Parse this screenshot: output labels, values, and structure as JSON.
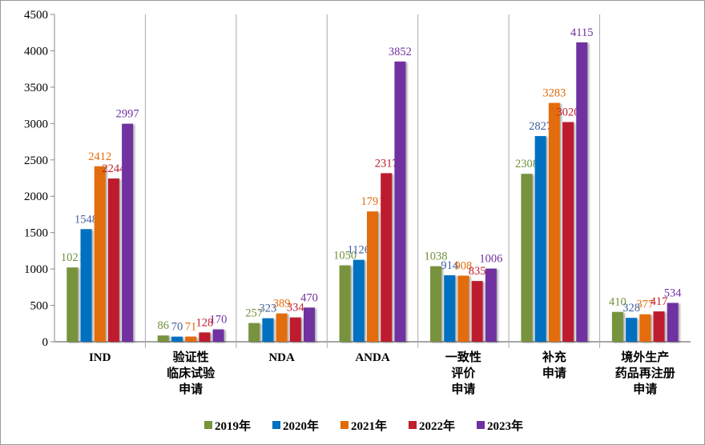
{
  "chart_data": {
    "type": "bar",
    "categories": [
      [
        "IND"
      ],
      [
        "验证性",
        "临床试验",
        "申请"
      ],
      [
        "NDA"
      ],
      [
        "ANDA"
      ],
      [
        "一致性",
        "评价",
        "申请"
      ],
      [
        "补充",
        "申请"
      ],
      [
        "境外生产",
        "药品再注册",
        "申请"
      ]
    ],
    "series": [
      {
        "name": "2019年",
        "color": "#77933c",
        "label_color": "#6f8f3a",
        "values": [
          1021,
          86,
          257,
          1050,
          1038,
          2308,
          410
        ]
      },
      {
        "name": "2020年",
        "color": "#0070c0",
        "label_color": "#3f5f9f",
        "values": [
          1548,
          70,
          323,
          1126,
          914,
          2827,
          328
        ]
      },
      {
        "name": "2021年",
        "color": "#e36c0a",
        "label_color": "#e36c0a",
        "values": [
          2412,
          71,
          389,
          1791,
          908,
          3283,
          377
        ]
      },
      {
        "name": "2022年",
        "color": "#be1e2d",
        "label_color": "#be1e2d",
        "values": [
          2244,
          128,
          334,
          2317,
          835,
          3020,
          417
        ]
      },
      {
        "name": "2023年",
        "color": "#7030a0",
        "label_color": "#7030a0",
        "values": [
          2997,
          170,
          470,
          3852,
          1006,
          4115,
          534
        ]
      }
    ],
    "yticks": [
      "0",
      "500",
      "1000",
      "1500",
      "2000",
      "2500",
      "3000",
      "3500",
      "4000",
      "4500"
    ],
    "ylim": [
      0,
      4500
    ],
    "grid": false,
    "legend": "bottom",
    "title": "",
    "xlabel": "",
    "ylabel": ""
  }
}
